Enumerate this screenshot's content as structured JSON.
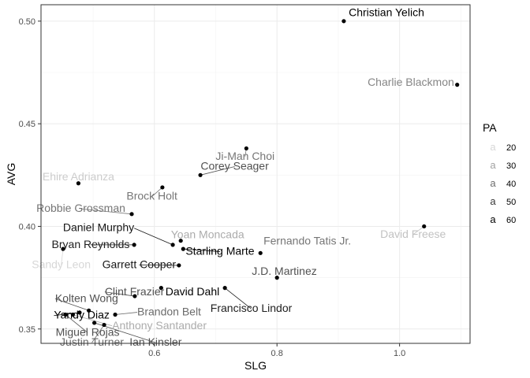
{
  "chart_data": {
    "type": "scatter",
    "xlabel": "SLG",
    "ylabel": "AVG",
    "xlim": [
      0.415,
      1.115
    ],
    "ylim": [
      0.343,
      0.508
    ],
    "x_ticks": [
      {
        "value": 0.6,
        "label": "0.6"
      },
      {
        "value": 0.8,
        "label": "0.8"
      },
      {
        "value": 1.0,
        "label": "1.0"
      }
    ],
    "y_ticks": [
      {
        "value": 0.35,
        "label": "0.35"
      },
      {
        "value": 0.4,
        "label": "0.40"
      },
      {
        "value": 0.45,
        "label": "0.45"
      },
      {
        "value": 0.5,
        "label": "0.50"
      }
    ],
    "grid": true,
    "legend": {
      "title": "PA",
      "position": "right",
      "symbol": "a",
      "entries": [
        {
          "label": "20",
          "value": 20
        },
        {
          "label": "30",
          "value": 30
        },
        {
          "label": "40",
          "value": 40
        },
        {
          "label": "50",
          "value": 50
        },
        {
          "label": "60",
          "value": 60
        }
      ]
    },
    "points": [
      {
        "name": "Christian Yelich",
        "x": 0.909,
        "y": 0.5,
        "pa": 60,
        "label_x": 0.917,
        "label_y": 0.5025,
        "anchor": "start"
      },
      {
        "name": "Charlie Blackmon",
        "x": 1.094,
        "y": 0.469,
        "pa": 35,
        "label_x": 1.089,
        "label_y": 0.4685,
        "anchor": "end"
      },
      {
        "name": "Ji-Man Choi",
        "x": 0.75,
        "y": 0.438,
        "pa": 38,
        "label_x": 0.748,
        "label_y": 0.4325,
        "anchor": "middle"
      },
      {
        "name": "Corey Seager",
        "x": 0.675,
        "y": 0.425,
        "pa": 45,
        "label_x": 0.731,
        "label_y": 0.4276,
        "anchor": "middle"
      },
      {
        "name": "Ehire Adrianza",
        "x": 0.476,
        "y": 0.421,
        "pa": 22,
        "label_x": 0.476,
        "label_y": 0.4225,
        "anchor": "middle"
      },
      {
        "name": "Brock Holt",
        "x": 0.613,
        "y": 0.419,
        "pa": 38,
        "label_x": 0.596,
        "label_y": 0.413,
        "anchor": "middle"
      },
      {
        "name": "Robbie Grossman",
        "x": 0.563,
        "y": 0.406,
        "pa": 38,
        "label_x": 0.48,
        "label_y": 0.407,
        "anchor": "middle"
      },
      {
        "name": "David Freese",
        "x": 1.04,
        "y": 0.4,
        "pa": 24,
        "label_x": 1.022,
        "label_y": 0.3945,
        "anchor": "middle"
      },
      {
        "name": "Daniel Murphy",
        "x": 0.63,
        "y": 0.391,
        "pa": 56,
        "label_x": 0.567,
        "label_y": 0.3976,
        "anchor": "end"
      },
      {
        "name": "Yoan Moncada",
        "x": 0.643,
        "y": 0.393,
        "pa": 28,
        "label_x": 0.627,
        "label_y": 0.3943,
        "anchor": "start"
      },
      {
        "name": "Bryan Reynolds",
        "x": 0.567,
        "y": 0.391,
        "pa": 54,
        "label_x": 0.496,
        "label_y": 0.3895,
        "anchor": "middle"
      },
      {
        "name": "Starling Marte",
        "x": 0.647,
        "y": 0.389,
        "pa": 60,
        "label_x": 0.707,
        "label_y": 0.3862,
        "anchor": "middle"
      },
      {
        "name": "Fernando Tatis Jr.",
        "x": 0.773,
        "y": 0.387,
        "pa": 38,
        "label_x": 0.778,
        "label_y": 0.3912,
        "anchor": "start"
      },
      {
        "name": "Sandy Leon",
        "x": 0.451,
        "y": 0.389,
        "pa": 20,
        "label_x": 0.448,
        "label_y": 0.3797,
        "anchor": "middle"
      },
      {
        "name": "Garrett Cooper",
        "x": 0.64,
        "y": 0.381,
        "pa": 56,
        "label_x": 0.575,
        "label_y": 0.3797,
        "anchor": "middle"
      },
      {
        "name": "J.D. Martinez",
        "x": 0.8,
        "y": 0.375,
        "pa": 45,
        "label_x": 0.812,
        "label_y": 0.3764,
        "anchor": "middle"
      },
      {
        "name": "Clint Frazier",
        "x": 0.568,
        "y": 0.366,
        "pa": 45,
        "label_x": 0.519,
        "label_y": 0.3665,
        "anchor": "start"
      },
      {
        "name": "David Dahl",
        "x": 0.611,
        "y": 0.37,
        "pa": 60,
        "label_x": 0.618,
        "label_y": 0.3665,
        "anchor": "start"
      },
      {
        "name": "Francisco Lindor",
        "x": 0.715,
        "y": 0.37,
        "pa": 54,
        "label_x": 0.758,
        "label_y": 0.3583,
        "anchor": "middle"
      },
      {
        "name": "Kolten Wong",
        "x": 0.493,
        "y": 0.359,
        "pa": 45,
        "label_x": 0.438,
        "label_y": 0.3632,
        "anchor": "start"
      },
      {
        "name": "Brandon Belt",
        "x": 0.536,
        "y": 0.357,
        "pa": 40,
        "label_x": 0.572,
        "label_y": 0.3566,
        "anchor": "start"
      },
      {
        "name": "Yandy Diaz",
        "x": 0.478,
        "y": 0.358,
        "pa": 60,
        "label_x": 0.436,
        "label_y": 0.355,
        "anchor": "start"
      },
      {
        "name": "Anthony Santander",
        "x": 0.467,
        "y": 0.357,
        "pa": 28,
        "label_x": 0.531,
        "label_y": 0.35,
        "anchor": "start"
      },
      {
        "name": "Miguel Rojas",
        "x": 0.455,
        "y": 0.357,
        "pa": 45,
        "label_x": 0.491,
        "label_y": 0.3467,
        "anchor": "middle"
      },
      {
        "name": "Justin Turner",
        "x": 0.518,
        "y": 0.352,
        "pa": 40,
        "label_x": 0.498,
        "label_y": 0.3418,
        "anchor": "middle"
      },
      {
        "name": "Ian Kinsler",
        "x": 0.502,
        "y": 0.353,
        "pa": 45,
        "label_x": 0.602,
        "label_y": 0.3418,
        "anchor": "middle"
      }
    ]
  }
}
